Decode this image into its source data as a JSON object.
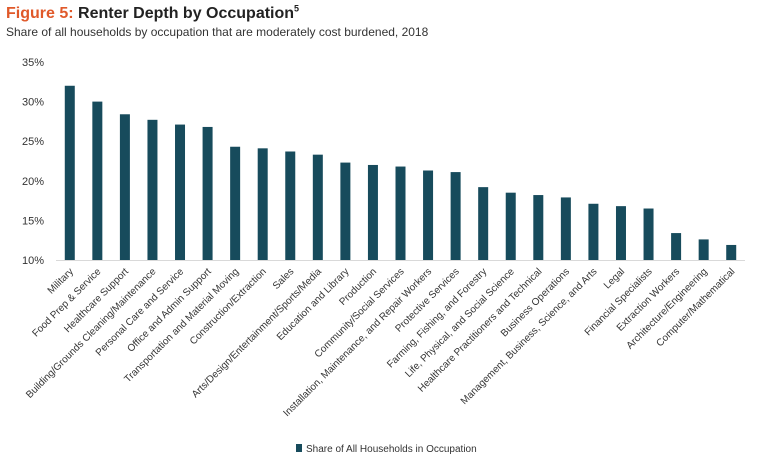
{
  "header": {
    "figure_label": "Figure 5:",
    "title": "Renter Depth by Occupation",
    "footnote": "5",
    "subtitle": "Share of all households by occupation that are moderately cost burdened, 2018"
  },
  "chart_data": {
    "type": "bar",
    "title": "Renter Depth by Occupation",
    "subtitle": "Share of all households by occupation that are moderately cost burdened, 2018",
    "xlabel": "",
    "ylabel": "",
    "ylim": [
      10,
      35
    ],
    "y_ticks": [
      10,
      15,
      20,
      25,
      30,
      35
    ],
    "y_tick_labels": [
      "10%",
      "15%",
      "20%",
      "25%",
      "30%",
      "35%"
    ],
    "grid": false,
    "legend_position": "bottom",
    "bar_color": "#174b5c",
    "categories": [
      "Military",
      "Food Prep & Service",
      "Healthcare Support",
      "Building/Grounds Cleaning/Maintenance",
      "Personal Care and Service",
      "Office and Admin Support",
      "Transportation and Material Moving",
      "Construction/Extraction",
      "Sales",
      "Arts/Design/Entertainment/Sports/Media",
      "Education and Library",
      "Production",
      "Community/Social Services",
      "Installation, Maintenance, and Repair Workers",
      "Protective Services",
      "Farming, Fishing, and Forestry",
      "Life, Physical, and Social Science",
      "Healthcare Practitioners and Technical",
      "Business Operations",
      "Management, Business, Science, and Arts",
      "Legal",
      "Financial Specialists",
      "Extraction Workers",
      "Architecture/Engineering",
      "Computer/Mathematical"
    ],
    "series": [
      {
        "name": "Share of All Households in Occupation",
        "values": [
          32.0,
          30.0,
          28.4,
          27.7,
          27.1,
          26.8,
          24.3,
          24.1,
          23.7,
          23.3,
          22.3,
          22.0,
          21.8,
          21.3,
          21.1,
          19.2,
          18.5,
          18.2,
          17.9,
          17.1,
          16.8,
          16.5,
          13.4,
          12.6,
          11.9
        ]
      }
    ]
  }
}
